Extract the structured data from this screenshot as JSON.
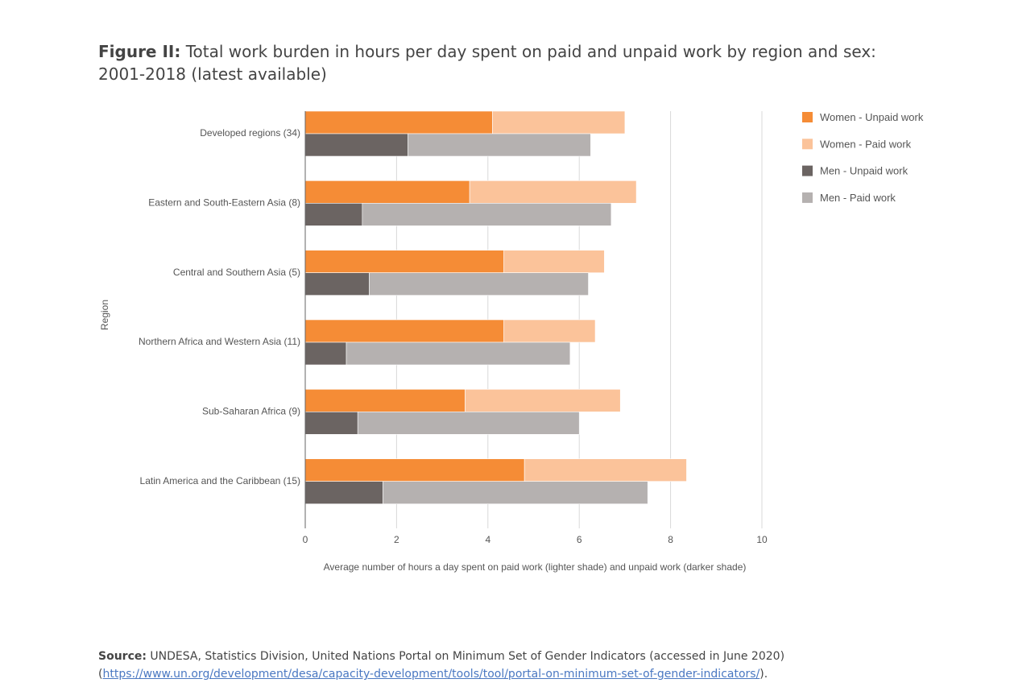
{
  "title": {
    "prefix": "Figure II:",
    "text": "Total work burden in hours per day spent on paid and unpaid work by region and sex: 2001-2018 (latest available)"
  },
  "source": {
    "label": "Source:",
    "text": "UNDESA, Statistics Division, United Nations Portal on Minimum Set of Gender Indicators (accessed in June 2020)",
    "link_open": "(",
    "link": "https://www.un.org/development/desa/capacity-development/tools/tool/portal-on-minimum-set-of-gender-indicators/",
    "link_close": ")."
  },
  "chart_data": {
    "type": "bar",
    "orientation": "horizontal",
    "stacked": true,
    "categories": [
      "Developed regions (34)",
      "Eastern and South-Eastern Asia (8)",
      "Central and Southern Asia (5)",
      "Northern Africa and Western Asia (11)",
      "Sub-Saharan Africa (9)",
      "Latin America and the Caribbean (15)"
    ],
    "groups": [
      {
        "name": "Women",
        "series": [
          {
            "name": "Women - Unpaid work",
            "color": "#f58c36",
            "values": [
              4.1,
              3.6,
              4.35,
              4.35,
              3.5,
              4.8
            ]
          },
          {
            "name": "Women - Paid work",
            "color": "#fbc39a",
            "values": [
              2.9,
              3.65,
              2.2,
              2.0,
              3.4,
              3.55
            ]
          }
        ]
      },
      {
        "name": "Men",
        "series": [
          {
            "name": "Men - Unpaid work",
            "color": "#6b6462",
            "values": [
              2.25,
              1.25,
              1.4,
              0.9,
              1.15,
              1.7
            ]
          },
          {
            "name": "Men - Paid work",
            "color": "#b5b1b0",
            "values": [
              4.0,
              5.45,
              4.8,
              4.9,
              4.85,
              5.8
            ]
          }
        ]
      }
    ],
    "xlim": [
      0,
      10
    ],
    "xticks": [
      0,
      2,
      4,
      6,
      8,
      10
    ],
    "xlabel": "Average number of hours a day spent on paid work (lighter shade) and unpaid work (darker shade)",
    "ylabel": "Region",
    "grid": true,
    "legend_position": "right"
  }
}
